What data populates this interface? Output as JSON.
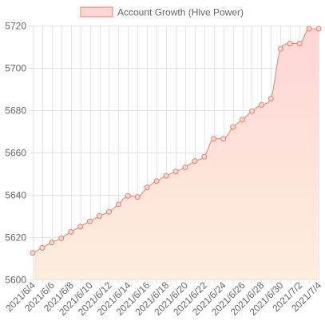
{
  "chart_data": {
    "type": "line",
    "title": "",
    "xlabel": "",
    "ylabel": "",
    "ylim": [
      5600,
      5720
    ],
    "yticks": [
      5600,
      5620,
      5640,
      5660,
      5680,
      5700,
      5720
    ],
    "grid": true,
    "legend_position": "top",
    "x": [
      "2021/6/4",
      "2021/6/5",
      "2021/6/6",
      "2021/6/7",
      "2021/6/8",
      "2021/6/9",
      "2021/6/10",
      "2021/6/11",
      "2021/6/12",
      "2021/6/13",
      "2021/6/14",
      "2021/6/15",
      "2021/6/16",
      "2021/6/17",
      "2021/6/18",
      "2021/6/19",
      "2021/6/20",
      "2021/6/21",
      "2021/6/22",
      "2021/6/23",
      "2021/6/24",
      "2021/6/25",
      "2021/6/26",
      "2021/6/27",
      "2021/6/28",
      "2021/6/29",
      "2021/6/30",
      "2021/7/1",
      "2021/7/2",
      "2021/7/3",
      "2021/7/4"
    ],
    "xtick_labels": [
      "2021/6/4",
      "2021/6/6",
      "2021/6/8",
      "2021/6/10",
      "2021/6/12",
      "2021/6/14",
      "2021/6/16",
      "2021/6/18",
      "2021/6/20",
      "2021/6/22",
      "2021/6/24",
      "2021/6/26",
      "2021/6/28",
      "2021/6/30",
      "2021/7/2",
      "2021/7/4"
    ],
    "series": [
      {
        "name": "Account Growth (Hive Power)",
        "color": "#f08060",
        "fill_top": "#ffd6d6",
        "fill_bottom": "#fdeede",
        "values": [
          5612.5,
          5615,
          5617.5,
          5619.5,
          5622.5,
          5625,
          5627.5,
          5630,
          5632,
          5635.5,
          5639.5,
          5639,
          5643.5,
          5646.5,
          5649,
          5651,
          5653,
          5656,
          5658,
          5666.5,
          5666.5,
          5672,
          5675.5,
          5679.5,
          5682.5,
          5685.5,
          5709,
          5711.5,
          5711.5,
          5718.5,
          5718.5
        ]
      }
    ]
  }
}
